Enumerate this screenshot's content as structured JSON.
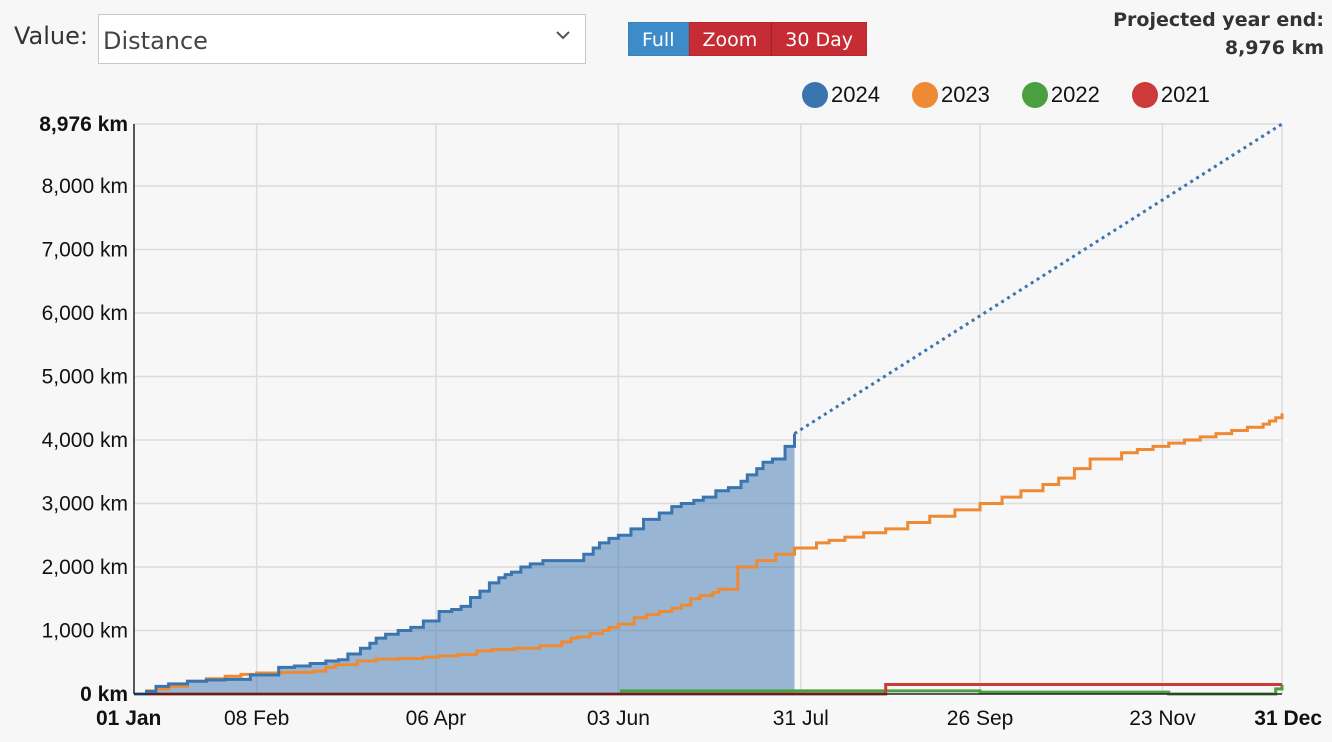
{
  "controls": {
    "value_label": "Value:",
    "value_selected": "Distance",
    "buttons": {
      "full": "Full",
      "zoom": "Zoom",
      "thirty_day": "30 Day"
    },
    "active_button": "full"
  },
  "projection": {
    "label": "Projected year end:",
    "value": "8,976 km"
  },
  "chart_data": {
    "type": "line",
    "xlabel": "",
    "ylabel": "",
    "x_unit": "day of year",
    "xlim": [
      1,
      366
    ],
    "ylim": [
      0,
      8976
    ],
    "grid": true,
    "legend_position": "top-right",
    "y_ticks": [
      {
        "value": 0,
        "label": "0 km",
        "bold": true
      },
      {
        "value": 1000,
        "label": "1,000 km",
        "bold": false
      },
      {
        "value": 2000,
        "label": "2,000 km",
        "bold": false
      },
      {
        "value": 3000,
        "label": "3,000 km",
        "bold": false
      },
      {
        "value": 4000,
        "label": "4,000 km",
        "bold": false
      },
      {
        "value": 5000,
        "label": "5,000 km",
        "bold": false
      },
      {
        "value": 6000,
        "label": "6,000 km",
        "bold": false
      },
      {
        "value": 7000,
        "label": "7,000 km",
        "bold": false
      },
      {
        "value": 8000,
        "label": "8,000 km",
        "bold": false
      },
      {
        "value": 8976,
        "label": "8,976 km",
        "bold": true
      }
    ],
    "x_ticks": [
      {
        "value": 1,
        "label": "01 Jan",
        "bold": true,
        "anchor": "start"
      },
      {
        "value": 40,
        "label": "08 Feb",
        "bold": false,
        "anchor": "middle"
      },
      {
        "value": 97,
        "label": "06 Apr",
        "bold": false,
        "anchor": "middle"
      },
      {
        "value": 155,
        "label": "03 Jun",
        "bold": false,
        "anchor": "middle"
      },
      {
        "value": 213,
        "label": "31 Jul",
        "bold": false,
        "anchor": "middle"
      },
      {
        "value": 270,
        "label": "26 Sep",
        "bold": false,
        "anchor": "middle"
      },
      {
        "value": 328,
        "label": "23 Nov",
        "bold": false,
        "anchor": "middle"
      },
      {
        "value": 366,
        "label": "31 Dec",
        "bold": true,
        "anchor": "end"
      }
    ],
    "series": [
      {
        "name": "2024",
        "color": "#3a75b0",
        "fill_color": "#3a75b0",
        "area": true,
        "x": [
          1,
          5,
          8,
          12,
          18,
          24,
          30,
          38,
          47,
          52,
          57,
          62,
          66,
          69,
          73,
          76,
          78,
          81,
          85,
          89,
          93,
          98,
          102,
          105,
          108,
          111,
          114,
          117,
          119,
          121,
          124,
          127,
          131,
          136,
          141,
          144,
          147,
          149,
          152,
          155,
          159,
          163,
          168,
          172,
          175,
          179,
          182,
          186,
          190,
          194,
          196,
          199,
          201,
          204,
          208,
          211
        ],
        "values": [
          0,
          40,
          120,
          160,
          200,
          220,
          230,
          300,
          420,
          440,
          480,
          520,
          540,
          630,
          720,
          800,
          880,
          940,
          1000,
          1050,
          1150,
          1300,
          1330,
          1380,
          1520,
          1620,
          1750,
          1830,
          1880,
          1920,
          2000,
          2050,
          2100,
          2100,
          2100,
          2200,
          2300,
          2380,
          2450,
          2500,
          2600,
          2750,
          2850,
          2950,
          3000,
          3050,
          3100,
          3200,
          3250,
          3350,
          3450,
          3550,
          3650,
          3700,
          3900,
          4100
        ]
      },
      {
        "name": "2024 projection",
        "color": "#3a75b0",
        "dashed": true,
        "x": [
          211,
          366
        ],
        "values": [
          4100,
          8976
        ]
      },
      {
        "name": "2023",
        "color": "#ef8a34",
        "x": [
          1,
          5,
          8,
          12,
          18,
          24,
          30,
          35,
          40,
          48,
          58,
          62,
          65,
          72,
          78,
          85,
          93,
          98,
          104,
          110,
          115,
          122,
          130,
          137,
          140,
          142,
          146,
          150,
          152,
          155,
          160,
          164,
          168,
          172,
          175,
          178,
          181,
          185,
          187,
          193,
          199,
          205,
          211,
          213,
          218,
          222,
          227,
          233,
          240,
          247,
          254,
          262,
          270,
          277,
          283,
          290,
          295,
          300,
          305,
          310,
          315,
          320,
          325,
          330,
          335,
          340,
          345,
          350,
          355,
          360,
          362,
          364,
          366
        ],
        "values": [
          0,
          50,
          80,
          120,
          200,
          240,
          280,
          310,
          330,
          340,
          360,
          420,
          460,
          520,
          550,
          560,
          580,
          600,
          620,
          680,
          700,
          720,
          760,
          820,
          880,
          900,
          950,
          1000,
          1050,
          1100,
          1200,
          1250,
          1300,
          1350,
          1400,
          1500,
          1550,
          1600,
          1650,
          2000,
          2100,
          2200,
          2300,
          2300,
          2380,
          2420,
          2470,
          2540,
          2600,
          2700,
          2800,
          2900,
          3000,
          3100,
          3200,
          3300,
          3400,
          3550,
          3700,
          3700,
          3800,
          3850,
          3900,
          3950,
          4000,
          4050,
          4100,
          4150,
          4200,
          4250,
          4300,
          4350,
          4420
        ]
      },
      {
        "name": "2022",
        "color": "#4aa040",
        "x": [
          1,
          156,
          270,
          330,
          364,
          366
        ],
        "values": [
          0,
          50,
          30,
          0,
          80,
          150
        ]
      },
      {
        "name": "2021",
        "color": "#cc3a3a",
        "x": [
          1,
          224,
          239,
          240,
          366
        ],
        "values": [
          0,
          0,
          0,
          150,
          150
        ]
      }
    ],
    "legend": [
      {
        "name": "2024",
        "color": "#3a75b0"
      },
      {
        "name": "2023",
        "color": "#ef8a34"
      },
      {
        "name": "2022",
        "color": "#4aa040"
      },
      {
        "name": "2021",
        "color": "#cc3a3a"
      }
    ]
  }
}
